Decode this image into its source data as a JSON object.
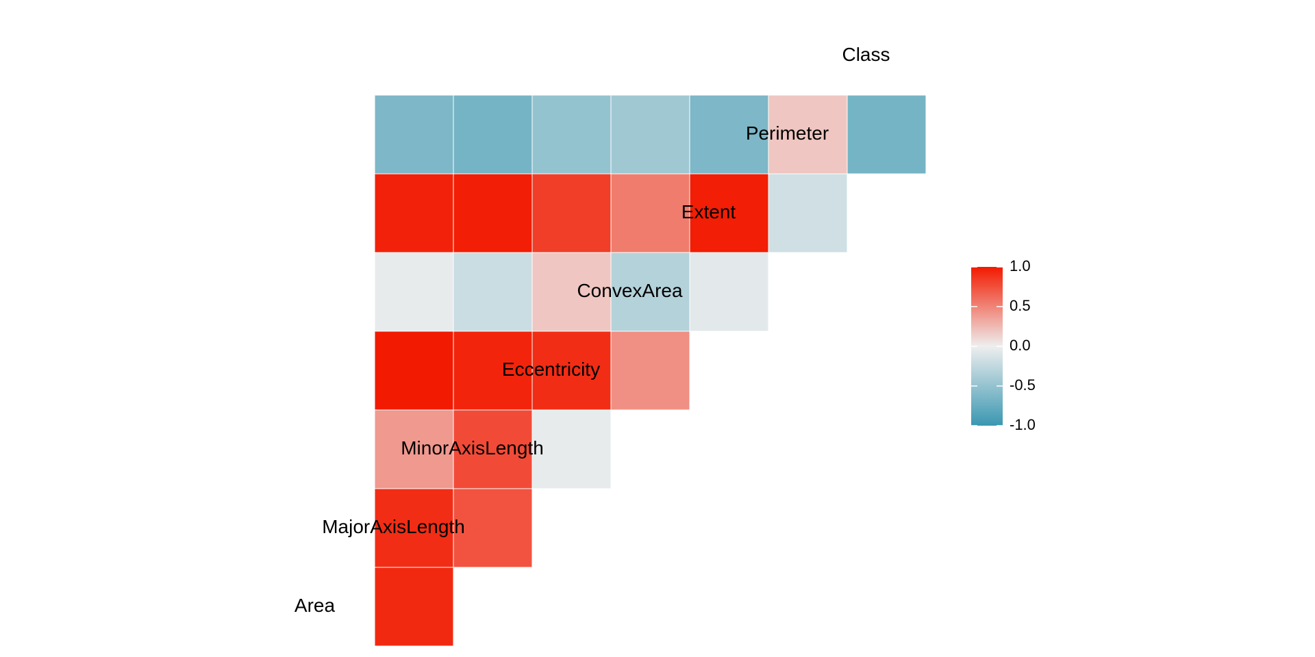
{
  "chart_data": {
    "type": "heatmap",
    "subtype": "correlation-lower-triangle",
    "variables": [
      "Area",
      "MajorAxisLength",
      "MinorAxisLength",
      "Eccentricity",
      "ConvexArea",
      "Extent",
      "Perimeter",
      "Class"
    ],
    "correlations": [
      {
        "row": "MajorAxisLength",
        "col": "Area",
        "value": 0.93
      },
      {
        "row": "MinorAxisLength",
        "col": "Area",
        "value": 0.91
      },
      {
        "row": "MinorAxisLength",
        "col": "MajorAxisLength",
        "value": 0.73
      },
      {
        "row": "Eccentricity",
        "col": "Area",
        "value": 0.4
      },
      {
        "row": "Eccentricity",
        "col": "MajorAxisLength",
        "value": 0.77
      },
      {
        "row": "Eccentricity",
        "col": "MinorAxisLength",
        "value": -0.04
      },
      {
        "row": "ConvexArea",
        "col": "Area",
        "value": 1.0
      },
      {
        "row": "ConvexArea",
        "col": "MajorAxisLength",
        "value": 0.95
      },
      {
        "row": "ConvexArea",
        "col": "MinorAxisLength",
        "value": 0.91
      },
      {
        "row": "ConvexArea",
        "col": "Eccentricity",
        "value": 0.45
      },
      {
        "row": "Extent",
        "col": "Area",
        "value": -0.04
      },
      {
        "row": "Extent",
        "col": "MajorAxisLength",
        "value": -0.2
      },
      {
        "row": "Extent",
        "col": "MinorAxisLength",
        "value": 0.19
      },
      {
        "row": "Extent",
        "col": "Eccentricity",
        "value": -0.32
      },
      {
        "row": "Extent",
        "col": "ConvexArea",
        "value": -0.06
      },
      {
        "row": "Perimeter",
        "col": "Area",
        "value": 0.96
      },
      {
        "row": "Perimeter",
        "col": "MajorAxisLength",
        "value": 0.98
      },
      {
        "row": "Perimeter",
        "col": "MinorAxisLength",
        "value": 0.83
      },
      {
        "row": "Perimeter",
        "col": "Eccentricity",
        "value": 0.54
      },
      {
        "row": "Perimeter",
        "col": "ConvexArea",
        "value": 0.98
      },
      {
        "row": "Perimeter",
        "col": "Extent",
        "value": -0.17
      },
      {
        "row": "Class",
        "col": "Area",
        "value": -0.63
      },
      {
        "row": "Class",
        "col": "MajorAxisLength",
        "value": -0.67
      },
      {
        "row": "Class",
        "col": "MinorAxisLength",
        "value": -0.5
      },
      {
        "row": "Class",
        "col": "Eccentricity",
        "value": -0.44
      },
      {
        "row": "Class",
        "col": "ConvexArea",
        "value": -0.63
      },
      {
        "row": "Class",
        "col": "Extent",
        "value": 0.19
      },
      {
        "row": "Class",
        "col": "Perimeter",
        "value": -0.67
      }
    ],
    "color_scale": {
      "low": "#3a97b1",
      "mid": "#eeeeee",
      "high": "#f21a00",
      "limits": [
        -1.0,
        1.0
      ],
      "tick_labels": [
        "1.0",
        "0.5",
        "0.0",
        "-0.5",
        "-1.0"
      ]
    },
    "legend_position": "right"
  }
}
